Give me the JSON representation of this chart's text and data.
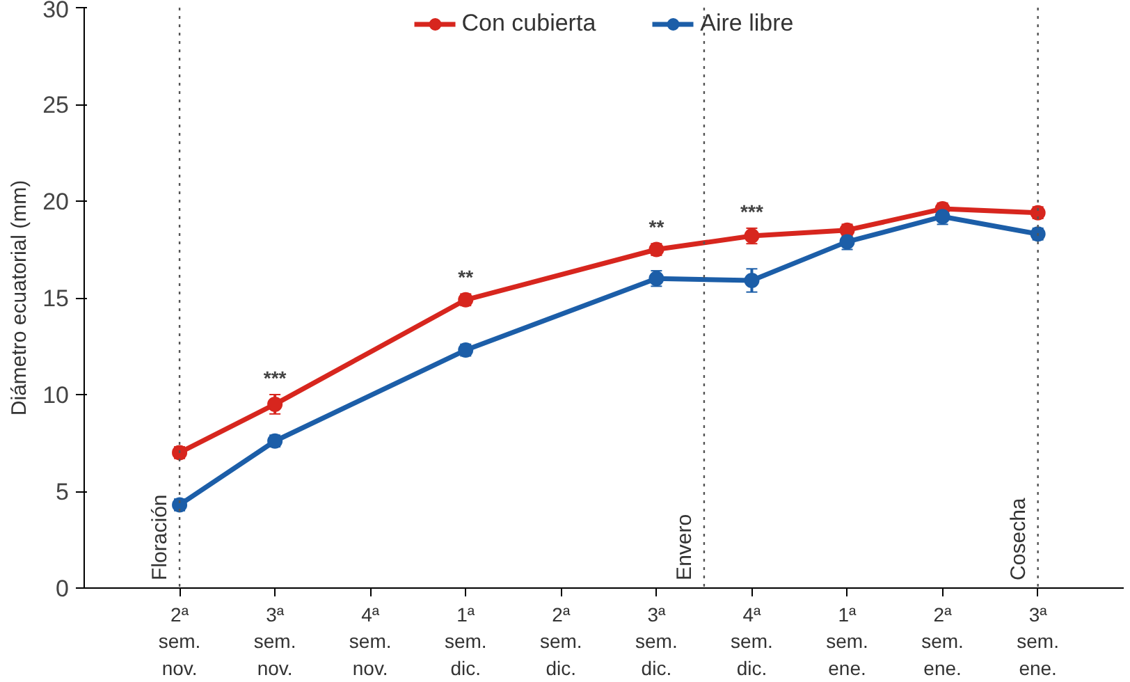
{
  "chart_data": {
    "type": "line",
    "categories": [
      "2ª sem. nov.",
      "3ª sem. nov.",
      "4ª sem. nov.",
      "1ª sem. dic.",
      "2ª sem. dic.",
      "3ª sem. dic.",
      "4ª sem. dic.",
      "1ª sem. ene.",
      "2ª sem. ene.",
      "3ª sem. ene."
    ],
    "ylabel": "Diámetro ecuatorial (mm)",
    "ylim": [
      0,
      30
    ],
    "yticks": [
      0,
      5,
      10,
      15,
      20,
      25,
      30
    ],
    "series": [
      {
        "name": "Con cubierta",
        "color": "#d7261e",
        "values": [
          7.0,
          9.5,
          null,
          14.9,
          null,
          17.5,
          18.2,
          18.5,
          19.6,
          19.4
        ],
        "errors": [
          0.3,
          0.5,
          null,
          0.3,
          null,
          0.3,
          0.4,
          0.3,
          0.3,
          0.3
        ]
      },
      {
        "name": "Aire libre",
        "color": "#1c5ea8",
        "values": [
          4.3,
          7.6,
          null,
          12.3,
          null,
          16.0,
          15.9,
          17.9,
          19.2,
          18.3
        ],
        "errors": [
          0.3,
          0.3,
          null,
          0.3,
          null,
          0.4,
          0.6,
          0.4,
          0.4,
          0.3
        ]
      }
    ],
    "ref_lines": [
      {
        "axis": "x",
        "value": "2ª sem. nov.",
        "label": "Floración",
        "line_style": "dotted",
        "color": "#555555"
      },
      {
        "axis": "x",
        "label": "Envero",
        "line_style": "dotted",
        "color": "#555555"
      },
      {
        "axis": "x",
        "value": "3ª sem. ene.",
        "label": "Cosecha",
        "line_style": "dotted",
        "color": "#555555"
      }
    ],
    "annotations": [
      {
        "text": "***",
        "x": "3ª sem. nov.",
        "y": 10.0
      },
      {
        "text": "**",
        "x": "1ª sem. dic.",
        "y": 15.2
      },
      {
        "text": "**",
        "x": "3ª sem. dic.",
        "y": 17.8
      },
      {
        "text": "***",
        "x": "4ª sem. dic.",
        "y": 18.6
      }
    ],
    "marker": "circle",
    "line_style": "solid",
    "legend": "top",
    "grid": false
  }
}
